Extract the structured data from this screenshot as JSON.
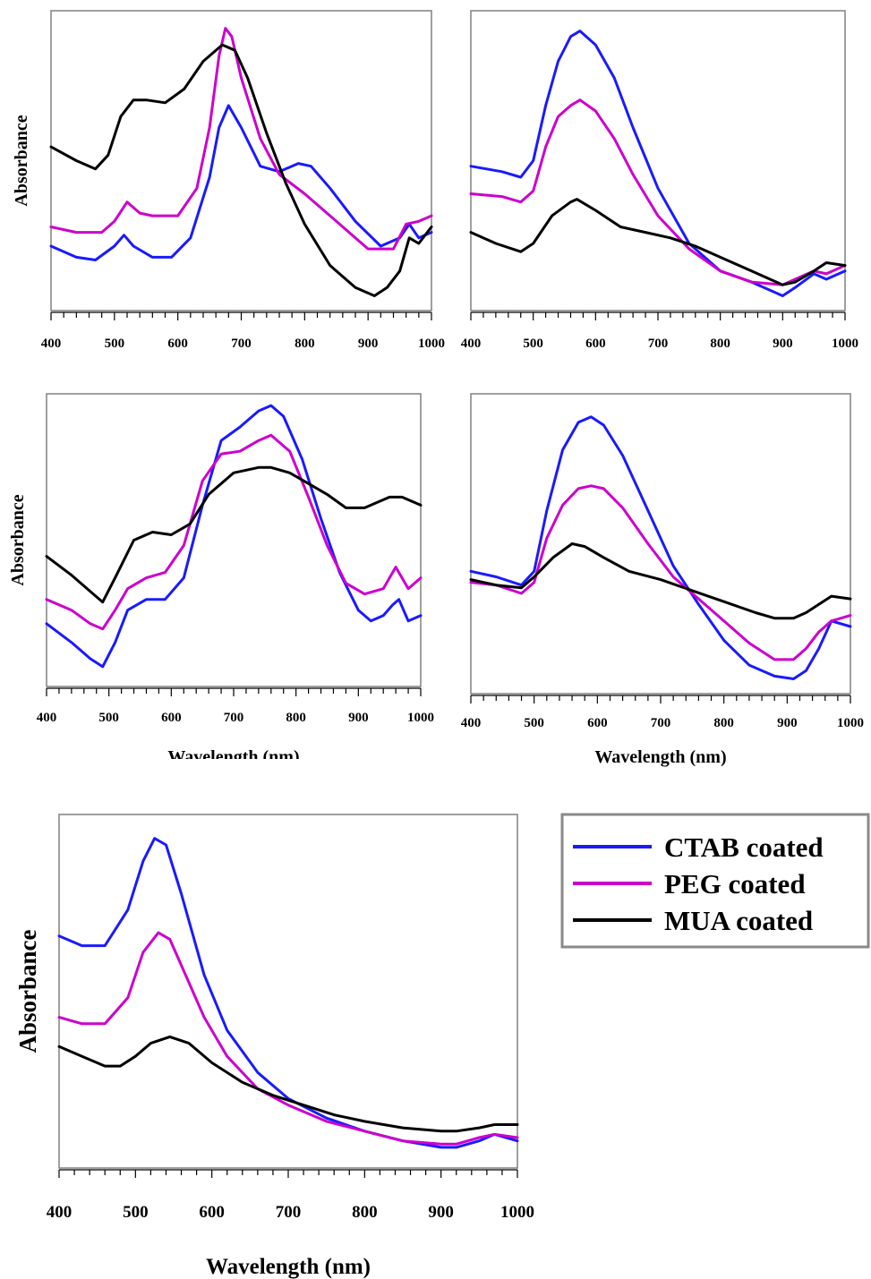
{
  "colors": {
    "ctab": "#1a1aff",
    "peg": "#cc00cc",
    "mua": "#000000",
    "frame": "#888888"
  },
  "legend": [
    {
      "label": "CTAB coated",
      "color": "#1a1aff"
    },
    {
      "label": "PEG coated",
      "color": "#cc00cc"
    },
    {
      "label": "MUA coated",
      "color": "#000000"
    }
  ],
  "chart_data": [
    {
      "type": "line",
      "ylabel": "Absorbance",
      "xlabel": "",
      "xlim": [
        400,
        1000
      ],
      "ylim": [
        0,
        1
      ],
      "xticks": [
        "400",
        "500",
        "600",
        "700",
        "800",
        "900",
        "1000"
      ],
      "series": [
        {
          "name": "CTAB coated",
          "x": [
            400,
            440,
            470,
            500,
            515,
            530,
            560,
            590,
            620,
            650,
            665,
            680,
            700,
            730,
            760,
            790,
            810,
            840,
            880,
            920,
            950,
            965,
            980,
            1000
          ],
          "values": [
            0.19,
            0.15,
            0.14,
            0.19,
            0.23,
            0.19,
            0.15,
            0.15,
            0.22,
            0.44,
            0.62,
            0.7,
            0.62,
            0.48,
            0.46,
            0.49,
            0.48,
            0.4,
            0.28,
            0.19,
            0.22,
            0.27,
            0.22,
            0.24
          ]
        },
        {
          "name": "PEG coated",
          "x": [
            400,
            440,
            480,
            500,
            520,
            540,
            560,
            600,
            630,
            650,
            665,
            675,
            685,
            700,
            730,
            760,
            800,
            850,
            900,
            940,
            960,
            980,
            1000
          ],
          "values": [
            0.26,
            0.24,
            0.24,
            0.28,
            0.35,
            0.31,
            0.3,
            0.3,
            0.4,
            0.62,
            0.88,
            0.98,
            0.95,
            0.8,
            0.58,
            0.45,
            0.38,
            0.28,
            0.18,
            0.18,
            0.27,
            0.28,
            0.3
          ]
        },
        {
          "name": "MUA coated",
          "x": [
            400,
            440,
            470,
            490,
            510,
            530,
            550,
            580,
            610,
            640,
            670,
            690,
            710,
            740,
            770,
            800,
            840,
            880,
            910,
            930,
            950,
            965,
            980,
            1000
          ],
          "values": [
            0.55,
            0.5,
            0.47,
            0.52,
            0.66,
            0.72,
            0.72,
            0.71,
            0.76,
            0.86,
            0.92,
            0.9,
            0.8,
            0.6,
            0.42,
            0.27,
            0.12,
            0.04,
            0.01,
            0.04,
            0.1,
            0.22,
            0.2,
            0.26
          ]
        }
      ]
    },
    {
      "type": "line",
      "ylabel": "",
      "xlabel": "",
      "xlim": [
        400,
        1000
      ],
      "ylim": [
        0,
        1
      ],
      "xticks": [
        "400",
        "500",
        "600",
        "700",
        "800",
        "900",
        "1000"
      ],
      "series": [
        {
          "name": "CTAB coated",
          "x": [
            400,
            450,
            480,
            500,
            520,
            540,
            560,
            575,
            600,
            630,
            660,
            700,
            750,
            800,
            850,
            900,
            920,
            950,
            970,
            1000
          ],
          "values": [
            0.48,
            0.46,
            0.44,
            0.5,
            0.7,
            0.86,
            0.95,
            0.97,
            0.92,
            0.8,
            0.62,
            0.4,
            0.2,
            0.1,
            0.06,
            0.01,
            0.04,
            0.09,
            0.07,
            0.1
          ]
        },
        {
          "name": "PEG coated",
          "x": [
            400,
            450,
            480,
            500,
            520,
            540,
            560,
            575,
            600,
            630,
            660,
            700,
            750,
            800,
            850,
            900,
            920,
            950,
            970,
            1000
          ],
          "values": [
            0.38,
            0.37,
            0.35,
            0.39,
            0.55,
            0.66,
            0.7,
            0.72,
            0.68,
            0.58,
            0.45,
            0.3,
            0.18,
            0.1,
            0.06,
            0.05,
            0.07,
            0.1,
            0.09,
            0.12
          ]
        },
        {
          "name": "MUA coated",
          "x": [
            400,
            440,
            480,
            500,
            530,
            560,
            570,
            600,
            640,
            680,
            720,
            760,
            800,
            850,
            900,
            920,
            950,
            970,
            1000
          ],
          "values": [
            0.24,
            0.2,
            0.17,
            0.2,
            0.3,
            0.35,
            0.36,
            0.32,
            0.26,
            0.24,
            0.22,
            0.19,
            0.15,
            0.1,
            0.05,
            0.06,
            0.1,
            0.13,
            0.12
          ]
        }
      ]
    },
    {
      "type": "line",
      "ylabel": "Absorbance",
      "xlabel": "Wavelength (nm)",
      "xlim": [
        400,
        1000
      ],
      "ylim": [
        0,
        1
      ],
      "xticks": [
        "400",
        "500",
        "600",
        "700",
        "800",
        "900",
        "1000"
      ],
      "series": [
        {
          "name": "CTAB coated",
          "x": [
            400,
            440,
            470,
            490,
            510,
            530,
            560,
            590,
            620,
            650,
            680,
            710,
            740,
            760,
            780,
            810,
            840,
            870,
            900,
            920,
            940,
            955,
            965,
            980,
            1000
          ],
          "values": [
            0.19,
            0.12,
            0.06,
            0.03,
            0.12,
            0.24,
            0.28,
            0.28,
            0.36,
            0.63,
            0.87,
            0.92,
            0.98,
            1.0,
            0.96,
            0.8,
            0.58,
            0.38,
            0.24,
            0.2,
            0.22,
            0.26,
            0.28,
            0.2,
            0.22
          ]
        },
        {
          "name": "PEG coated",
          "x": [
            400,
            440,
            470,
            490,
            510,
            530,
            560,
            590,
            620,
            650,
            680,
            710,
            740,
            760,
            790,
            820,
            850,
            880,
            910,
            940,
            960,
            980,
            1000
          ],
          "values": [
            0.28,
            0.24,
            0.19,
            0.17,
            0.24,
            0.32,
            0.36,
            0.38,
            0.48,
            0.72,
            0.82,
            0.83,
            0.87,
            0.89,
            0.83,
            0.66,
            0.48,
            0.34,
            0.3,
            0.32,
            0.4,
            0.32,
            0.36
          ]
        },
        {
          "name": "MUA coated",
          "x": [
            400,
            440,
            470,
            490,
            510,
            540,
            570,
            600,
            630,
            660,
            700,
            740,
            760,
            790,
            820,
            850,
            880,
            910,
            930,
            950,
            970,
            1000
          ],
          "values": [
            0.44,
            0.37,
            0.31,
            0.27,
            0.36,
            0.5,
            0.53,
            0.52,
            0.56,
            0.67,
            0.75,
            0.77,
            0.77,
            0.75,
            0.71,
            0.67,
            0.62,
            0.62,
            0.64,
            0.66,
            0.66,
            0.63
          ]
        }
      ]
    },
    {
      "type": "line",
      "ylabel": "",
      "xlabel": "Wavelength (nm)",
      "xlim": [
        400,
        1000
      ],
      "ylim": [
        0,
        1
      ],
      "xticks": [
        "400",
        "500",
        "600",
        "700",
        "800",
        "900",
        "1000"
      ],
      "series": [
        {
          "name": "CTAB coated",
          "x": [
            400,
            440,
            480,
            500,
            520,
            545,
            570,
            590,
            610,
            640,
            680,
            720,
            760,
            800,
            840,
            880,
            910,
            930,
            950,
            970,
            1000
          ],
          "values": [
            0.4,
            0.38,
            0.35,
            0.4,
            0.62,
            0.84,
            0.94,
            0.96,
            0.93,
            0.82,
            0.62,
            0.42,
            0.28,
            0.15,
            0.06,
            0.02,
            0.01,
            0.04,
            0.12,
            0.22,
            0.2
          ]
        },
        {
          "name": "PEG coated",
          "x": [
            400,
            440,
            480,
            500,
            520,
            545,
            570,
            590,
            610,
            640,
            680,
            720,
            760,
            800,
            840,
            880,
            910,
            930,
            950,
            970,
            1000
          ],
          "values": [
            0.36,
            0.35,
            0.32,
            0.36,
            0.52,
            0.64,
            0.7,
            0.71,
            0.7,
            0.63,
            0.5,
            0.38,
            0.3,
            0.22,
            0.14,
            0.08,
            0.08,
            0.12,
            0.18,
            0.22,
            0.24
          ]
        },
        {
          "name": "MUA coated",
          "x": [
            400,
            440,
            480,
            500,
            530,
            560,
            580,
            610,
            650,
            700,
            750,
            800,
            850,
            880,
            910,
            930,
            950,
            970,
            1000
          ],
          "values": [
            0.37,
            0.35,
            0.34,
            0.38,
            0.45,
            0.5,
            0.49,
            0.45,
            0.4,
            0.37,
            0.33,
            0.29,
            0.25,
            0.23,
            0.23,
            0.25,
            0.28,
            0.31,
            0.3
          ]
        }
      ]
    },
    {
      "type": "line",
      "ylabel": "Absorbance",
      "xlabel": "Wavelength (nm)",
      "xlim": [
        400,
        1000
      ],
      "ylim": [
        0,
        1
      ],
      "xticks": [
        "400",
        "500",
        "600",
        "700",
        "800",
        "900",
        "1000"
      ],
      "series": [
        {
          "name": "CTAB coated",
          "x": [
            400,
            430,
            460,
            490,
            510,
            525,
            540,
            560,
            590,
            620,
            660,
            700,
            750,
            800,
            850,
            900,
            920,
            950,
            970,
            1000
          ],
          "values": [
            0.67,
            0.64,
            0.64,
            0.75,
            0.9,
            0.97,
            0.95,
            0.8,
            0.55,
            0.38,
            0.25,
            0.17,
            0.11,
            0.07,
            0.04,
            0.02,
            0.02,
            0.04,
            0.06,
            0.04
          ]
        },
        {
          "name": "PEG coated",
          "x": [
            400,
            430,
            460,
            490,
            510,
            530,
            545,
            560,
            590,
            620,
            660,
            700,
            750,
            800,
            850,
            900,
            920,
            950,
            970,
            1000
          ],
          "values": [
            0.42,
            0.4,
            0.4,
            0.48,
            0.62,
            0.68,
            0.66,
            0.58,
            0.42,
            0.3,
            0.2,
            0.15,
            0.1,
            0.07,
            0.04,
            0.03,
            0.03,
            0.05,
            0.06,
            0.05
          ]
        },
        {
          "name": "MUA coated",
          "x": [
            400,
            430,
            460,
            480,
            500,
            520,
            545,
            570,
            600,
            640,
            680,
            720,
            760,
            800,
            850,
            900,
            920,
            950,
            970,
            1000
          ],
          "values": [
            0.33,
            0.3,
            0.27,
            0.27,
            0.3,
            0.34,
            0.36,
            0.34,
            0.28,
            0.22,
            0.18,
            0.15,
            0.12,
            0.1,
            0.08,
            0.07,
            0.07,
            0.08,
            0.09,
            0.09
          ]
        }
      ]
    }
  ]
}
